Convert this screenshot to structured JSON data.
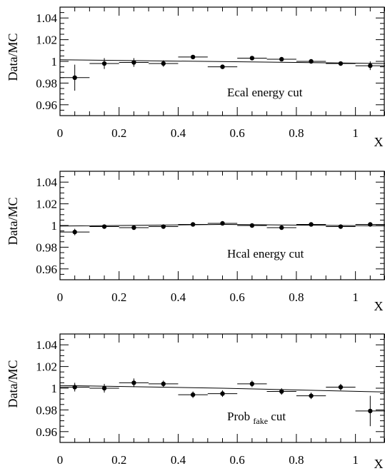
{
  "chart_data": [
    {
      "type": "scatter",
      "note": "Ecal energy cut",
      "ylabel": "Data/MC",
      "xlabel": "X",
      "xlim": [
        0,
        1.1
      ],
      "ylim": [
        0.95,
        1.05
      ],
      "xticks": [
        0,
        0.2,
        0.4,
        0.6,
        0.8,
        1
      ],
      "xtick_labels": [
        "0",
        "0.2",
        "0.4",
        "0.6",
        "0.8",
        "1"
      ],
      "yticks": [
        0.96,
        0.98,
        1.0,
        1.02,
        1.04
      ],
      "ytick_labels": [
        "0.96",
        "0.98",
        "1",
        "1.02",
        "1.04"
      ],
      "series": [
        {
          "x": [
            0.05,
            0.15,
            0.25,
            0.35,
            0.45,
            0.55,
            0.65,
            0.75,
            0.85,
            0.95,
            1.05
          ],
          "y": [
            0.985,
            0.998,
            0.999,
            0.998,
            1.004,
            0.995,
            1.003,
            1.002,
            1.0,
            0.998,
            0.996
          ],
          "xerr": [
            0.05,
            0.05,
            0.05,
            0.05,
            0.05,
            0.05,
            0.05,
            0.05,
            0.05,
            0.05,
            0.05
          ],
          "yerr": [
            0.012,
            0.005,
            0.004,
            0.003,
            0.002,
            0.002,
            0.001,
            0.001,
            0.001,
            0.002,
            0.004
          ]
        }
      ],
      "fit": {
        "x": [
          0,
          1.1
        ],
        "y": [
          1.0015,
          0.998
        ]
      }
    },
    {
      "type": "scatter",
      "note": "Hcal energy cut",
      "ylabel": "Data/MC",
      "xlabel": "X",
      "xlim": [
        0,
        1.1
      ],
      "ylim": [
        0.95,
        1.05
      ],
      "xticks": [
        0,
        0.2,
        0.4,
        0.6,
        0.8,
        1
      ],
      "xtick_labels": [
        "0",
        "0.2",
        "0.4",
        "0.6",
        "0.8",
        "1"
      ],
      "yticks": [
        0.96,
        0.98,
        1.0,
        1.02,
        1.04
      ],
      "ytick_labels": [
        "0.96",
        "0.98",
        "1",
        "1.02",
        "1.04"
      ],
      "series": [
        {
          "x": [
            0.05,
            0.15,
            0.25,
            0.35,
            0.45,
            0.55,
            0.65,
            0.75,
            0.85,
            0.95,
            1.05
          ],
          "y": [
            0.994,
            0.999,
            0.998,
            0.999,
            1.001,
            1.002,
            1.0,
            0.998,
            1.001,
            0.999,
            1.001
          ],
          "xerr": [
            0.05,
            0.05,
            0.05,
            0.05,
            0.05,
            0.05,
            0.05,
            0.05,
            0.05,
            0.05,
            0.05
          ],
          "yerr": [
            0.003,
            0.001,
            0.001,
            0.001,
            0.001,
            0.001,
            0.001,
            0.001,
            0.001,
            0.001,
            0.001
          ]
        }
      ],
      "fit": {
        "x": [
          0,
          0.55,
          1.1
        ],
        "y": [
          0.9995,
          1.001,
          0.9997
        ]
      }
    },
    {
      "type": "scatter",
      "note_main": "Prob",
      "note_sub": "fake",
      "note_tail": "cut",
      "ylabel": "Data/MC",
      "xlabel": "X",
      "xlim": [
        0,
        1.1
      ],
      "ylim": [
        0.95,
        1.05
      ],
      "xticks": [
        0,
        0.2,
        0.4,
        0.6,
        0.8,
        1
      ],
      "xtick_labels": [
        "0",
        "0.2",
        "0.4",
        "0.6",
        "0.8",
        "1"
      ],
      "yticks": [
        0.96,
        0.98,
        1.0,
        1.02,
        1.04
      ],
      "ytick_labels": [
        "0.96",
        "0.98",
        "1",
        "1.02",
        "1.04"
      ],
      "series": [
        {
          "x": [
            0.05,
            0.15,
            0.25,
            0.35,
            0.45,
            0.55,
            0.65,
            0.75,
            0.85,
            0.95,
            1.05
          ],
          "y": [
            1.001,
            1.0,
            1.005,
            1.004,
            0.994,
            0.995,
            1.004,
            0.997,
            0.993,
            1.001,
            0.979
          ],
          "xerr": [
            0.05,
            0.05,
            0.05,
            0.05,
            0.05,
            0.05,
            0.05,
            0.05,
            0.05,
            0.05,
            0.05
          ],
          "yerr": [
            0.004,
            0.004,
            0.004,
            0.003,
            0.003,
            0.003,
            0.003,
            0.003,
            0.003,
            0.003,
            0.014
          ]
        }
      ],
      "fit": {
        "x": [
          0,
          0.55,
          1.1
        ],
        "y": [
          1.0025,
          1.0,
          0.9965
        ]
      }
    }
  ]
}
